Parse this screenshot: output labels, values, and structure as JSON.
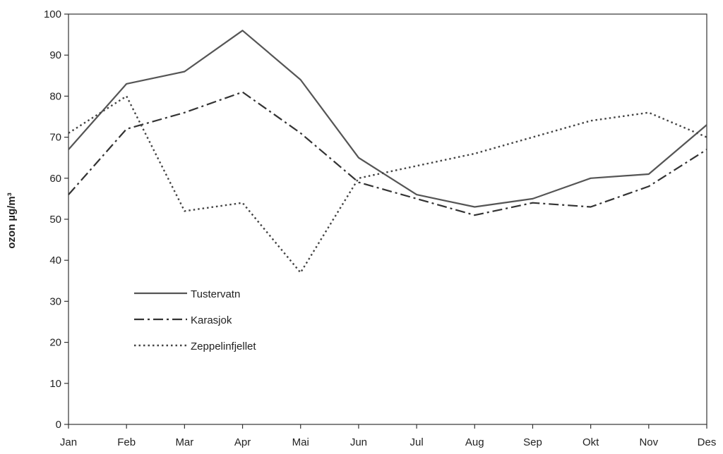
{
  "chart_data": {
    "type": "line",
    "ylabel": "ozon µg/m³",
    "ylim": [
      0,
      100
    ],
    "yticks": [
      0,
      10,
      20,
      30,
      40,
      50,
      60,
      70,
      80,
      90,
      100
    ],
    "categories": [
      "Jan",
      "Feb",
      "Mar",
      "Apr",
      "Mai",
      "Jun",
      "Jul",
      "Aug",
      "Sep",
      "Okt",
      "Nov",
      "Des"
    ],
    "grid": false,
    "legend_position": "left",
    "series": [
      {
        "name": "Tustervatn",
        "style": "solid",
        "color": "#555555",
        "values": [
          67,
          83,
          86,
          96,
          84,
          65,
          56,
          53,
          55,
          60,
          61,
          73
        ]
      },
      {
        "name": "Karasjok",
        "style": "dash-dot",
        "color": "#333333",
        "values": [
          56,
          72,
          76,
          81,
          71,
          59,
          55,
          51,
          54,
          53,
          58,
          67
        ]
      },
      {
        "name": "Zeppelinfjellet",
        "style": "dotted",
        "color": "#444444",
        "values": [
          71,
          80,
          52,
          54,
          37,
          60,
          63,
          66,
          70,
          74,
          76,
          70
        ]
      }
    ]
  }
}
